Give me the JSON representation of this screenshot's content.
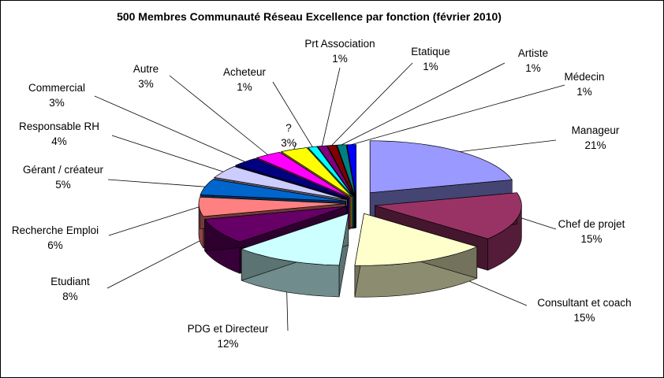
{
  "chart_data": {
    "type": "pie",
    "variant": "3d-exploded",
    "title": "500 Membres Communauté Réseau Excellence par fonction (février 2010)",
    "slices": [
      {
        "label": "Manageur",
        "value": 21,
        "display": "21%",
        "color": "#9999FF"
      },
      {
        "label": "Chef de projet",
        "value": 15,
        "display": "15%",
        "color": "#993366"
      },
      {
        "label": "Consultant et coach",
        "value": 15,
        "display": "15%",
        "color": "#FFFFCC"
      },
      {
        "label": "PDG et Directeur",
        "value": 12,
        "display": "12%",
        "color": "#CCFFFF"
      },
      {
        "label": "Etudiant",
        "value": 8,
        "display": "8%",
        "color": "#660066"
      },
      {
        "label": "Recherche Emploi",
        "value": 6,
        "display": "6%",
        "color": "#FF8080"
      },
      {
        "label": "Gérant / créateur",
        "value": 5,
        "display": "5%",
        "color": "#0066CC"
      },
      {
        "label": "Responsable RH",
        "value": 4,
        "display": "4%",
        "color": "#CCCCFF"
      },
      {
        "label": "Commercial",
        "value": 3,
        "display": "3%",
        "color": "#000080"
      },
      {
        "label": "Autre",
        "value": 3,
        "display": "3%",
        "color": "#FF00FF"
      },
      {
        "label": "?",
        "value": 3,
        "display": "3%",
        "color": "#FFFF00"
      },
      {
        "label": "Acheteur",
        "value": 1,
        "display": "1%",
        "color": "#00FFFF"
      },
      {
        "label": "Prt Association",
        "value": 1,
        "display": "1%",
        "color": "#800080"
      },
      {
        "label": "Etatique",
        "value": 1,
        "display": "1%",
        "color": "#800000"
      },
      {
        "label": "Artiste",
        "value": 1,
        "display": "1%",
        "color": "#008080"
      },
      {
        "label": "Médecin",
        "value": 1,
        "display": "1%",
        "color": "#0000FF"
      }
    ],
    "legend": "none",
    "grid": false
  }
}
